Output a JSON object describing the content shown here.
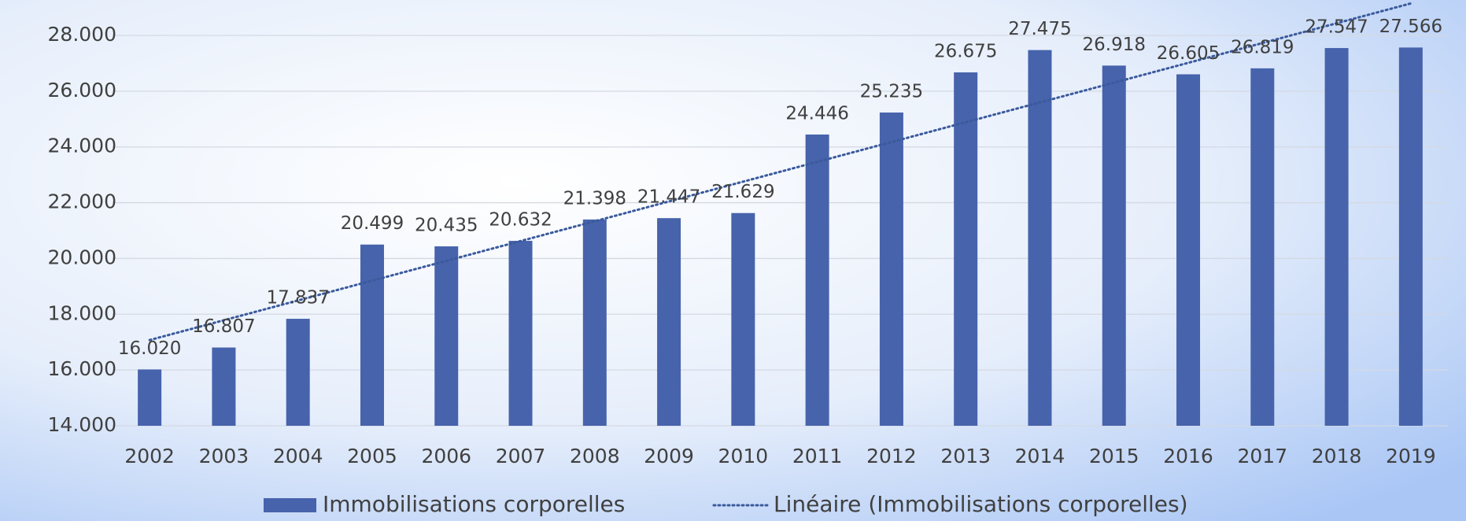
{
  "chart_data": {
    "type": "bar",
    "categories": [
      "2002",
      "2003",
      "2004",
      "2005",
      "2006",
      "2007",
      "2008",
      "2009",
      "2010",
      "2011",
      "2012",
      "2013",
      "2014",
      "2015",
      "2016",
      "2017",
      "2018",
      "2019"
    ],
    "series": [
      {
        "name": "Immobilisations corporelles",
        "color": "#4763ac",
        "values": [
          16020,
          16807,
          17837,
          20499,
          20435,
          20632,
          21398,
          21447,
          21629,
          24446,
          25235,
          26675,
          27475,
          26918,
          26605,
          26819,
          27547,
          27566
        ],
        "value_labels": [
          "16.020",
          "16.807",
          "17.837",
          "20.499",
          "20.435",
          "20.632",
          "21.398",
          "21.447",
          "21.629",
          "24.446",
          "25.235",
          "26.675",
          "27.475",
          "26.918",
          "26.605",
          "26.819",
          "27.547",
          "27.566"
        ]
      }
    ],
    "trendline": {
      "name": "Linéaire (Immobilisations corporelles)",
      "color": "#3a5a9c",
      "type": "linear"
    },
    "ylim": [
      14000,
      28000
    ],
    "yticks": [
      {
        "value": 14000,
        "label": "14.000"
      },
      {
        "value": 16000,
        "label": "16.000"
      },
      {
        "value": 18000,
        "label": "18.000"
      },
      {
        "value": 20000,
        "label": "20.000"
      },
      {
        "value": 22000,
        "label": "22.000"
      },
      {
        "value": 24000,
        "label": "24.000"
      },
      {
        "value": 26000,
        "label": "26.000"
      },
      {
        "value": 28000,
        "label": "28.000"
      }
    ],
    "grid": true,
    "legend": "bottom"
  }
}
